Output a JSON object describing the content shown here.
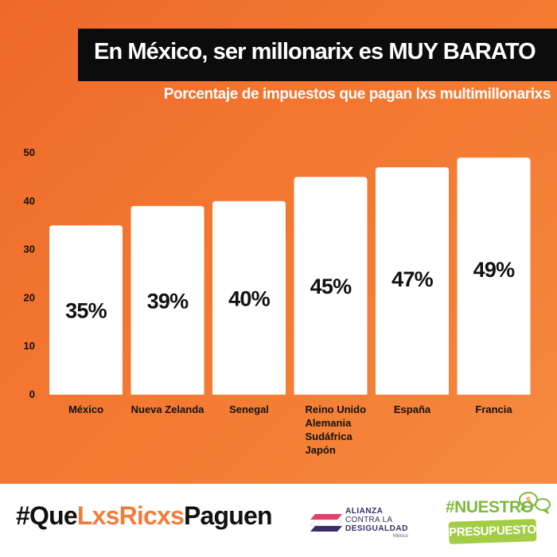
{
  "header": {
    "title": "En México, ser millonarix es MUY BARATO",
    "subtitle": "Porcentaje de impuestos que pagan lxs multimillonarixs"
  },
  "chart_data": {
    "type": "bar",
    "title": "En México, ser millonarix es MUY BARATO",
    "subtitle": "Porcentaje de impuestos que pagan lxs multimillonarixs",
    "categories": [
      [
        "México"
      ],
      [
        "Nueva Zelanda"
      ],
      [
        "Senegal"
      ],
      [
        "Reino Unido",
        "Alemania",
        "Sudáfrica",
        "Japón"
      ],
      [
        "España"
      ],
      [
        "Francia"
      ]
    ],
    "values": [
      35,
      39,
      40,
      45,
      47,
      49
    ],
    "value_labels": [
      "35%",
      "39%",
      "40%",
      "45%",
      "47%",
      "49%"
    ],
    "ylim": [
      0,
      50
    ],
    "yticks": [
      0,
      10,
      20,
      30,
      40,
      50
    ],
    "xlabel": "",
    "ylabel": "",
    "grid": false,
    "legend": "none"
  },
  "footer": {
    "hashtag_part1": "#Que",
    "hashtag_part2": "LxsRicxs",
    "hashtag_part3": "Paguen",
    "alianza_line1": "ALIANZA",
    "alianza_line2": "CONTRA LA",
    "alianza_line3": "DESIGUALDAD",
    "alianza_line4": "México",
    "nuestro_label": "#NUESTRO",
    "presupuesto_label": "PRESUPUESTO"
  },
  "colors": {
    "background": "#f47a32",
    "title_bg": "#0c0c0c",
    "bar": "#ffffff",
    "text_dark": "#111111",
    "hashtag_accent": "#f07d39",
    "presupuesto_green": "#a3cd45",
    "alianza_purple": "#3a2a66",
    "alianza_pink": "#e0406a"
  }
}
